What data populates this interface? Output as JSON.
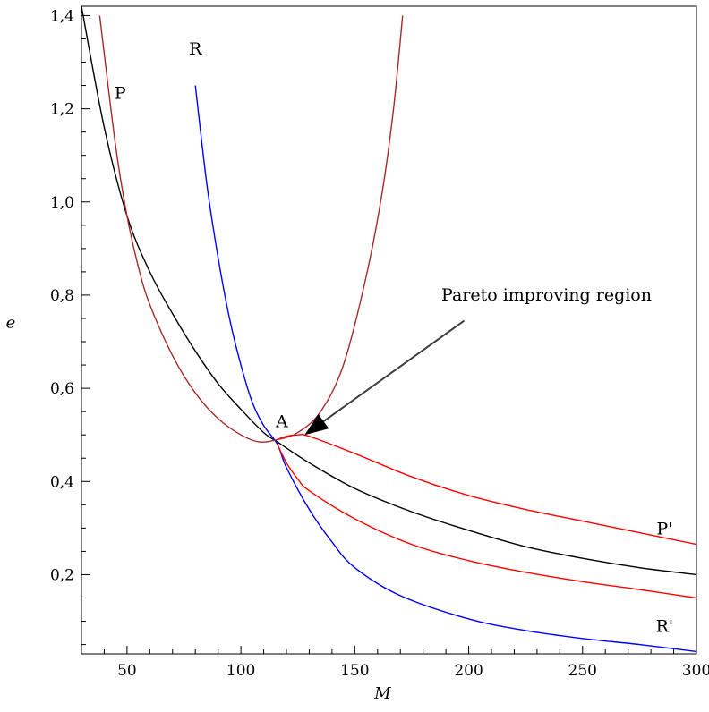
{
  "chart_data": {
    "type": "line",
    "title": "",
    "xlabel": "M",
    "ylabel": "e",
    "xlim": [
      30,
      300
    ],
    "ylim": [
      0.03,
      1.42
    ],
    "x_ticks": [
      50,
      100,
      150,
      200,
      250,
      300
    ],
    "x_tick_labels": [
      "50",
      "100",
      "150",
      "200",
      "250",
      "300"
    ],
    "y_ticks": [
      0.2,
      0.4,
      0.6,
      0.8,
      1.0,
      1.2,
      1.4
    ],
    "y_tick_labels": [
      "0,2",
      "0,4",
      "0,6",
      "0,8",
      "1,0",
      "1,2",
      "1,4"
    ],
    "grid": false,
    "legend": "none",
    "colors": {
      "black_curve": "#000000",
      "blue_curve": "#0000ff",
      "brown_curve": "#a52a2a",
      "red_curve": "#ff0000",
      "arrow": "#3c3c3c"
    },
    "series": [
      {
        "key": "black",
        "color": "#000000",
        "x": [
          30,
          40,
          50,
          60,
          70,
          80,
          90,
          100,
          110,
          116,
          130,
          150,
          175,
          200,
          225,
          250,
          275,
          300
        ],
        "y": [
          1.42,
          1.16,
          0.97,
          0.85,
          0.76,
          0.68,
          0.61,
          0.555,
          0.505,
          0.485,
          0.44,
          0.385,
          0.335,
          0.295,
          0.26,
          0.235,
          0.215,
          0.2
        ]
      },
      {
        "key": "R",
        "color": "#0000ff",
        "x": [
          80,
          85,
          90,
          95,
          100,
          105,
          110,
          116,
          120,
          130,
          140,
          150,
          170,
          200,
          225,
          250,
          275,
          300
        ],
        "y": [
          1.25,
          1.04,
          0.88,
          0.75,
          0.65,
          0.57,
          0.52,
          0.48,
          0.43,
          0.34,
          0.27,
          0.215,
          0.155,
          0.105,
          0.08,
          0.063,
          0.05,
          0.035
        ]
      },
      {
        "key": "P",
        "color": "#a52a2a",
        "x": [
          38,
          45,
          50,
          55,
          60,
          70,
          80,
          90,
          100,
          108,
          116,
          125,
          135,
          145,
          155,
          162,
          167,
          171
        ],
        "y": [
          1.4,
          1.12,
          0.97,
          0.86,
          0.78,
          0.67,
          0.59,
          0.535,
          0.5,
          0.485,
          0.49,
          0.505,
          0.55,
          0.65,
          0.84,
          1.02,
          1.2,
          1.4
        ]
      },
      {
        "key": "P'",
        "color": "#ff0000",
        "x": [
          116,
          120,
          125,
          130,
          150,
          175,
          200,
          225,
          250,
          275,
          300
        ],
        "y": [
          0.49,
          0.497,
          0.5,
          0.497,
          0.46,
          0.41,
          0.37,
          0.34,
          0.315,
          0.29,
          0.265
        ]
      },
      {
        "key": "R'",
        "color": "#ff0000",
        "x": [
          116,
          120,
          125,
          130,
          150,
          175,
          200,
          225,
          250,
          275,
          300
        ],
        "y": [
          0.48,
          0.44,
          0.405,
          0.38,
          0.32,
          0.265,
          0.23,
          0.205,
          0.185,
          0.168,
          0.15
        ]
      }
    ],
    "labels": [
      {
        "text": "P",
        "x": 47,
        "y": 1.235
      },
      {
        "text": "R",
        "x": 80,
        "y": 1.33
      },
      {
        "text": "A",
        "x": 118,
        "y": 0.53
      },
      {
        "text": "P'",
        "x": 286,
        "y": 0.3
      },
      {
        "text": "R'",
        "x": 286,
        "y": 0.09
      }
    ],
    "annotations": [
      {
        "text": "Pareto improving region",
        "text_x": 188,
        "text_y": 0.8,
        "arrow_from": [
          198,
          0.745
        ],
        "arrow_to": [
          128,
          0.5
        ]
      }
    ]
  }
}
